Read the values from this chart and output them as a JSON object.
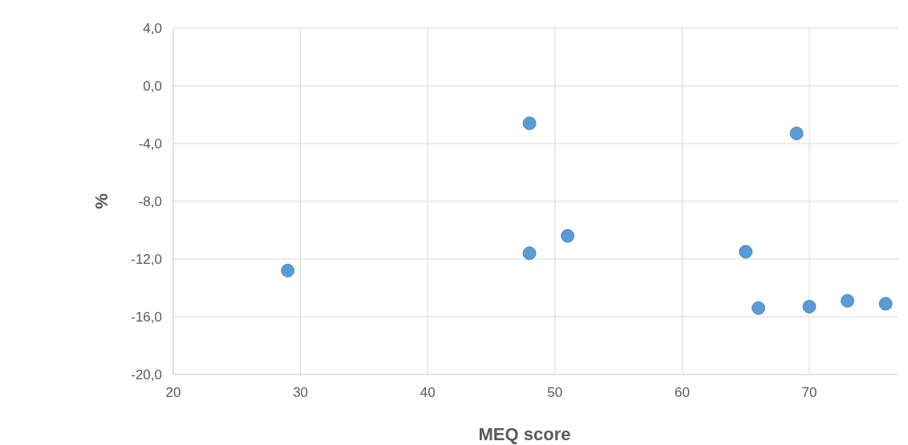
{
  "chart_data": {
    "type": "scatter",
    "xlabel": "MEQ score",
    "ylabel": "%",
    "x": [
      29,
      48,
      48,
      51,
      65,
      66,
      69,
      70,
      73,
      76
    ],
    "values": [
      -12.8,
      -2.6,
      -11.6,
      -10.4,
      -11.5,
      -15.4,
      -3.3,
      -15.3,
      -14.9,
      -15.1
    ],
    "color": "#5b9bd5",
    "marker": "circle",
    "grid": true,
    "xlim": [
      20,
      77
    ],
    "xticks": [
      20,
      30,
      40,
      50,
      60,
      70
    ],
    "ylim": [
      -20,
      4
    ],
    "yticks": [
      {
        "value": 4,
        "label": "4,0"
      },
      {
        "value": 0,
        "label": "0,0"
      },
      {
        "value": -4,
        "label": "-4,0"
      },
      {
        "value": -8,
        "label": "-8,0"
      },
      {
        "value": -12,
        "label": "-12,0"
      },
      {
        "value": -16,
        "label": "-16,0"
      },
      {
        "value": -20,
        "label": "-20,0"
      }
    ]
  }
}
